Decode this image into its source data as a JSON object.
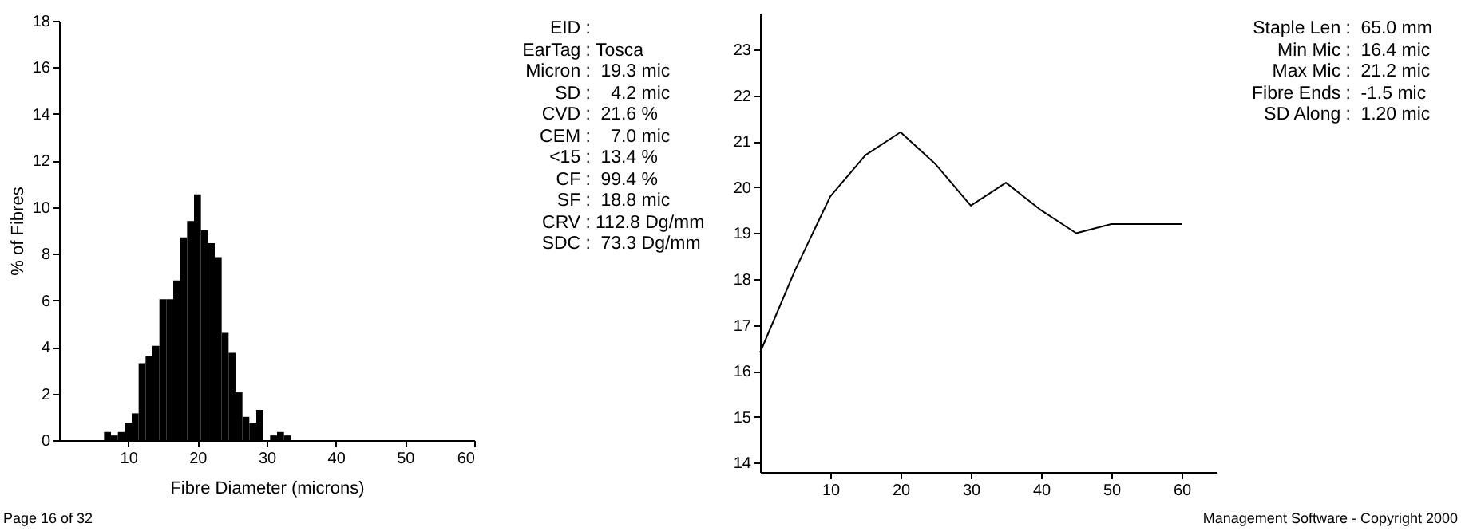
{
  "chart_data": [
    {
      "type": "histogram",
      "xlabel": "Fibre Diameter (microns)",
      "ylabel": "% of Fibres",
      "color": "#000000",
      "bins": [
        6.5,
        7.5,
        8.5,
        9.5,
        10.5,
        11.5,
        12.5,
        13.5,
        14.5,
        15.5,
        16.5,
        17.5,
        18.5,
        19.5,
        20.5,
        21.5,
        22.5,
        23.5,
        24.5,
        25.5,
        26.5,
        27.5,
        28.5,
        29.5,
        30.5,
        31.5,
        32.5,
        33.5
      ],
      "values": [
        0.35,
        0.2,
        0.35,
        0.75,
        1.15,
        3.3,
        3.6,
        4.05,
        6.05,
        6.05,
        6.85,
        8.7,
        9.4,
        10.55,
        9.0,
        8.45,
        7.85,
        4.6,
        3.75,
        2.05,
        1.0,
        0.75,
        1.3,
        0,
        0.2,
        0.35,
        0.2
      ],
      "xlim": [
        0,
        60
      ],
      "xticks": [
        10,
        20,
        30,
        40,
        50,
        60
      ],
      "ylim": [
        0,
        18
      ],
      "yticks": [
        0,
        2,
        4,
        6,
        8,
        10,
        12,
        14,
        16,
        18
      ],
      "annotations": [
        "Page 16 of 32"
      ]
    },
    {
      "type": "other",
      "annotations": [
        "EID :",
        "EarTag : Tosca",
        "Micron :  19.3 mic",
        "SD :    4.2 mic",
        "CVD :  21.6 %",
        "CEM :    7.0 mic",
        "<15 :  13.4 %",
        "CF :  99.4 %",
        "SF :  18.8 mic",
        "CRV : 112.8 Dg/mm",
        "SDC :  73.3 Dg/mm"
      ]
    },
    {
      "type": "line",
      "x": [
        0,
        5,
        10,
        15,
        20,
        25,
        30,
        35,
        40,
        45,
        50,
        55,
        60
      ],
      "color": "#000000",
      "values": [
        16.4,
        18.2,
        19.8,
        20.7,
        21.2,
        20.5,
        19.6,
        20.1,
        19.5,
        19.0,
        19.2,
        19.2,
        19.2
      ],
      "xlim": [
        0,
        65
      ],
      "xticks": [
        10,
        20,
        30,
        40,
        50,
        60
      ],
      "ylim": [
        13.8,
        23.8
      ],
      "yticks": [
        14,
        15,
        16,
        17,
        18,
        19,
        20,
        21,
        22,
        23
      ],
      "annotations": [
        "Staple Len :  65.0 mm",
        "Min Mic :  16.4 mic",
        "Max Mic :  21.2 mic",
        "Fibre Ends :  -1.5 mic",
        "SD Along :  1.20 mic",
        "Management Software - Copyright 2000"
      ]
    }
  ]
}
